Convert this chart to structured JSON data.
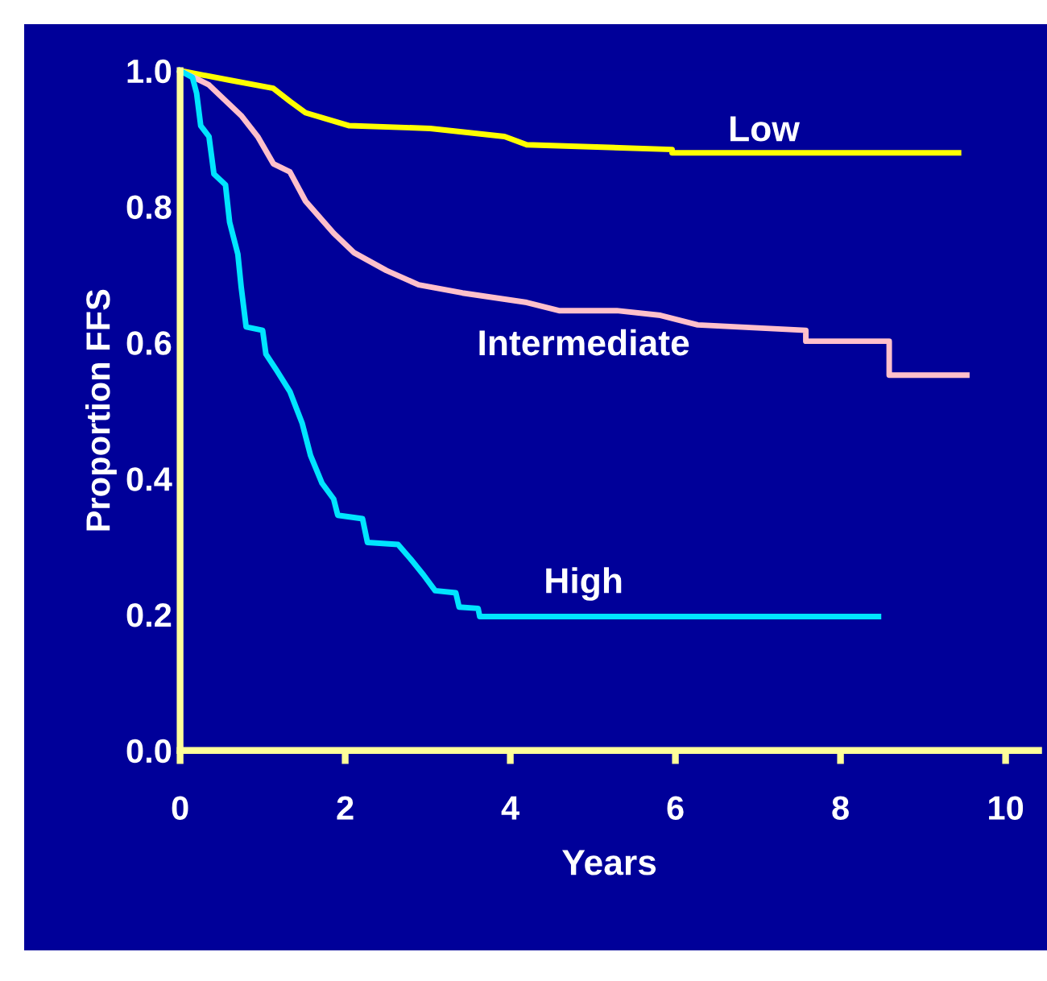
{
  "chart_data": {
    "type": "line",
    "xlabel": "Years",
    "ylabel": "Proportion FFS",
    "xlim": [
      0,
      10.4
    ],
    "ylim": [
      0,
      1.0
    ],
    "xticks": [
      0,
      2,
      4,
      6,
      8,
      10
    ],
    "yticks": [
      {
        "value": 0,
        "label": "0.0"
      },
      0.2,
      0.4,
      0.6,
      0.8,
      {
        "value": 1,
        "label": "1.0"
      }
    ],
    "grid": false,
    "legend": false,
    "marker": "none",
    "line_style": "solid",
    "series": [
      {
        "name": "Low",
        "color": "#ffff00",
        "x": [
          0,
          0.6,
          1.13,
          1.33,
          1.52,
          2.05,
          3.03,
          3.93,
          4.2,
          5.96,
          5.96,
          9.43
        ],
        "values": [
          1.0,
          0.986,
          0.974,
          0.955,
          0.938,
          0.919,
          0.915,
          0.903,
          0.891,
          0.884,
          0.879,
          0.879
        ]
      },
      {
        "name": "Intermediate",
        "color": "#ffc0cb",
        "x": [
          0,
          0.35,
          0.74,
          0.94,
          1.13,
          1.33,
          1.52,
          1.86,
          2.11,
          2.5,
          2.89,
          3.42,
          4.2,
          4.59,
          5.29,
          5.82,
          6.27,
          7.58,
          7.58,
          8.59,
          8.59,
          9.53
        ],
        "values": [
          1.0,
          0.979,
          0.934,
          0.903,
          0.863,
          0.851,
          0.808,
          0.761,
          0.732,
          0.706,
          0.685,
          0.673,
          0.659,
          0.647,
          0.647,
          0.64,
          0.626,
          0.618,
          0.602,
          0.602,
          0.552,
          0.552
        ]
      },
      {
        "name": "High",
        "color": "#00e5ff",
        "x": [
          0,
          0.15,
          0.2,
          0.25,
          0.35,
          0.41,
          0.55,
          0.6,
          0.7,
          0.74,
          0.8,
          1.0,
          1.04,
          1.17,
          1.33,
          1.48,
          1.58,
          1.72,
          1.86,
          1.91,
          2.21,
          2.27,
          2.64,
          2.79,
          2.95,
          3.09,
          3.34,
          3.38,
          3.61,
          3.63,
          8.46
        ],
        "values": [
          1.0,
          0.99,
          0.967,
          0.919,
          0.903,
          0.848,
          0.832,
          0.777,
          0.73,
          0.682,
          0.623,
          0.618,
          0.583,
          0.559,
          0.528,
          0.481,
          0.434,
          0.393,
          0.37,
          0.346,
          0.341,
          0.306,
          0.303,
          0.282,
          0.258,
          0.235,
          0.232,
          0.211,
          0.209,
          0.197,
          0.197
        ]
      }
    ]
  }
}
